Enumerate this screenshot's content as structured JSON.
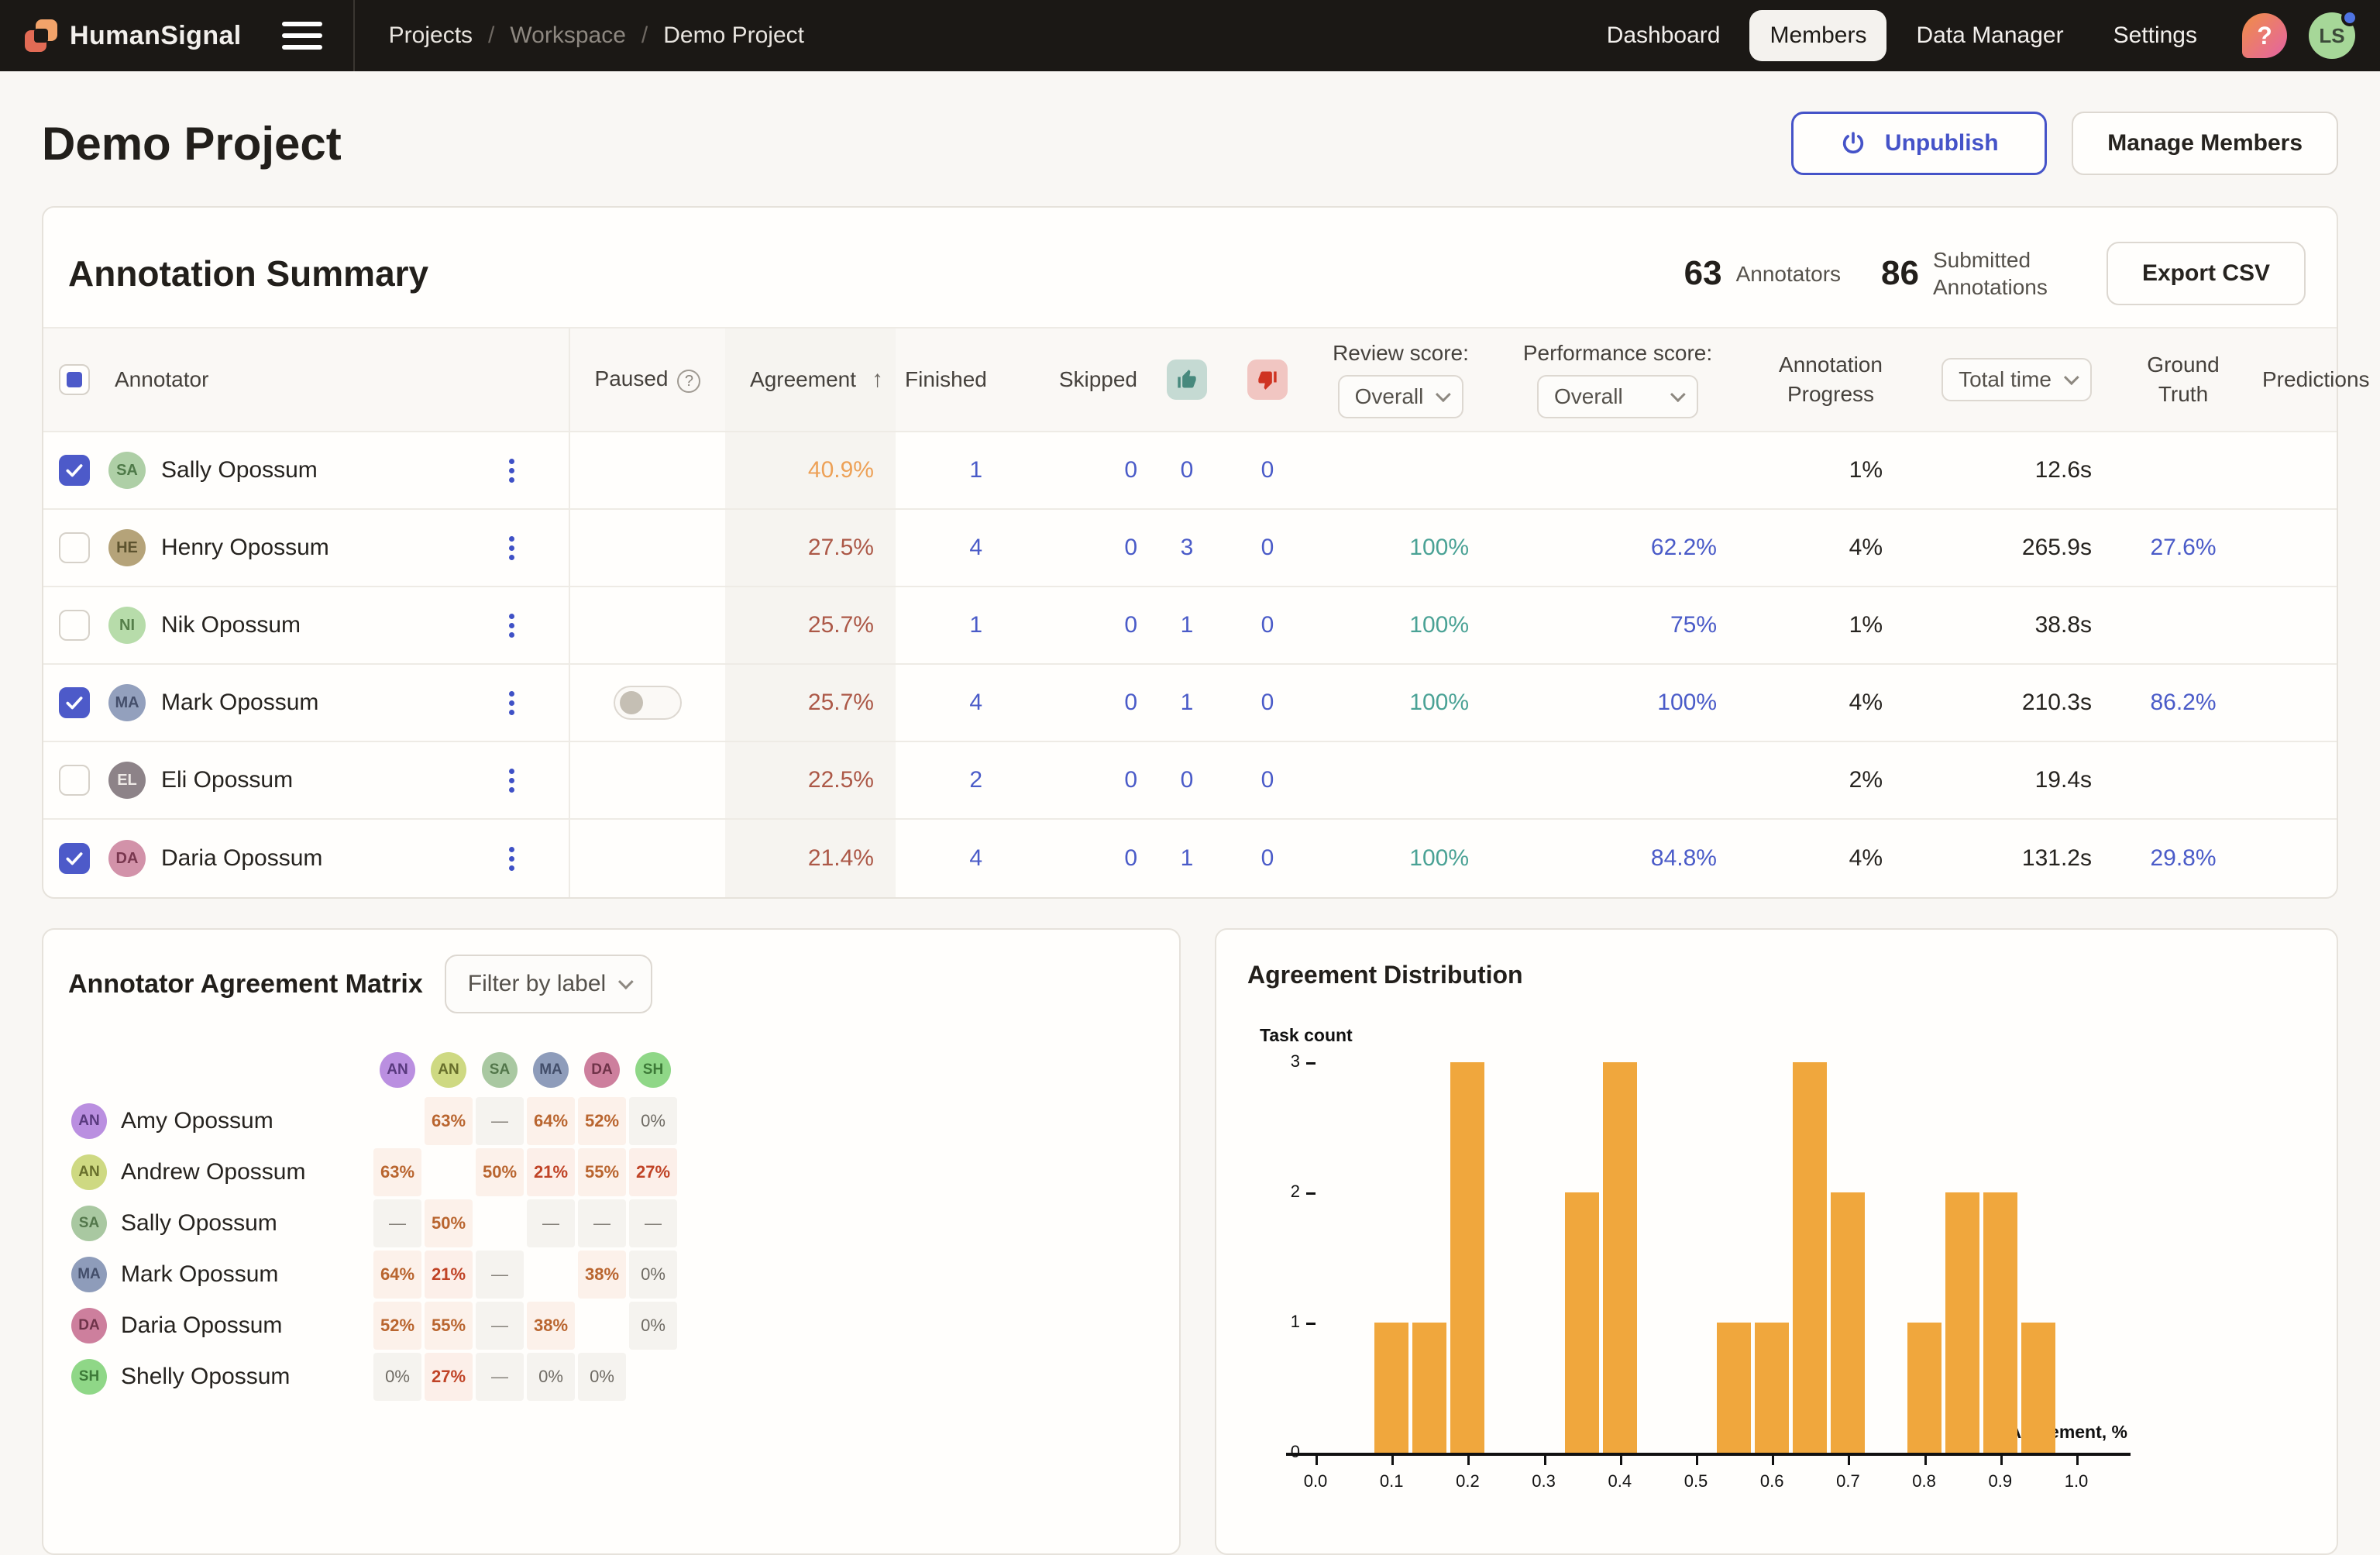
{
  "nav": {
    "brand": "HumanSignal",
    "breadcrumb": [
      "Projects",
      "Workspace",
      "Demo Project"
    ],
    "items": [
      "Dashboard",
      "Members",
      "Data Manager",
      "Settings"
    ],
    "active_item": "Members",
    "help_label": "?",
    "avatar_initials": "LS"
  },
  "page": {
    "title": "Demo Project",
    "unpublish_label": "Unpublish",
    "manage_members_label": "Manage Members"
  },
  "summary": {
    "title": "Annotation Summary",
    "annotators_count": "63",
    "annotators_label": "Annotators",
    "submitted_count": "86",
    "submitted_label": "Submitted Annotations",
    "export_label": "Export CSV"
  },
  "table": {
    "headers": {
      "annotator": "Annotator",
      "paused": "Paused",
      "agreement": "Agreement",
      "sort_arrow": "↑",
      "finished": "Finished",
      "skipped": "Skipped",
      "review_score": "Review score:",
      "review_filter": "Overall",
      "performance_score": "Performance score:",
      "performance_filter": "Overall",
      "annotation_progress": "Annotation Progress",
      "total_time": "Total time",
      "ground_truth": "Ground Truth",
      "predictions": "Predictions"
    },
    "rows": [
      {
        "checked": true,
        "initials": "SA",
        "avatar_bg": "#aecfa6",
        "avatar_fg": "#4f7a49",
        "name": "Sally Opossum",
        "paused": null,
        "agreement": "40.9%",
        "agreement_tone": "v-orange",
        "finished": "1",
        "skipped": "0",
        "thumbs_up": "0",
        "thumbs_down": "0",
        "review": "",
        "performance": "",
        "progress": "1%",
        "total_time": "12.6s",
        "ground_truth": "",
        "predictions": ""
      },
      {
        "checked": false,
        "initials": "HE",
        "avatar_bg": "#b5a379",
        "avatar_fg": "#5d532f",
        "name": "Henry Opossum",
        "paused": null,
        "agreement": "27.5%",
        "agreement_tone": "v-sienna",
        "finished": "4",
        "skipped": "0",
        "thumbs_up": "3",
        "thumbs_down": "0",
        "review": "100%",
        "performance": "62.2%",
        "progress": "4%",
        "total_time": "265.9s",
        "ground_truth": "27.6%",
        "predictions": ""
      },
      {
        "checked": false,
        "initials": "NI",
        "avatar_bg": "#b7dcaa",
        "avatar_fg": "#567f4a",
        "name": "Nik Opossum",
        "paused": null,
        "agreement": "25.7%",
        "agreement_tone": "v-sienna",
        "finished": "1",
        "skipped": "0",
        "thumbs_up": "1",
        "thumbs_down": "0",
        "review": "100%",
        "performance": "75%",
        "progress": "1%",
        "total_time": "38.8s",
        "ground_truth": "",
        "predictions": ""
      },
      {
        "checked": true,
        "initials": "MA",
        "avatar_bg": "#93a0bd",
        "avatar_fg": "#454f6b",
        "name": "Mark Opossum",
        "paused": "off",
        "agreement": "25.7%",
        "agreement_tone": "v-sienna",
        "finished": "4",
        "skipped": "0",
        "thumbs_up": "1",
        "thumbs_down": "0",
        "review": "100%",
        "performance": "100%",
        "progress": "4%",
        "total_time": "210.3s",
        "ground_truth": "86.2%",
        "predictions": ""
      },
      {
        "checked": false,
        "initials": "EL",
        "avatar_bg": "#8d8388",
        "avatar_fg": "#eeeae6",
        "name": "Eli Opossum",
        "paused": null,
        "agreement": "22.5%",
        "agreement_tone": "v-sienna",
        "finished": "2",
        "skipped": "0",
        "thumbs_up": "0",
        "thumbs_down": "0",
        "review": "",
        "performance": "",
        "progress": "2%",
        "total_time": "19.4s",
        "ground_truth": "",
        "predictions": ""
      },
      {
        "checked": true,
        "initials": "DA",
        "avatar_bg": "#d292a9",
        "avatar_fg": "#79374f",
        "name": "Daria Opossum",
        "paused": null,
        "agreement": "21.4%",
        "agreement_tone": "v-sienna",
        "finished": "4",
        "skipped": "0",
        "thumbs_up": "1",
        "thumbs_down": "0",
        "review": "100%",
        "performance": "84.8%",
        "progress": "4%",
        "total_time": "131.2s",
        "ground_truth": "29.8%",
        "predictions": ""
      }
    ]
  },
  "matrix": {
    "title": "Annotator Agreement Matrix",
    "filter_label": "Filter by label",
    "columns": [
      {
        "initials": "AN",
        "bg": "#ba8fe0",
        "fg": "#593a7e"
      },
      {
        "initials": "AN",
        "bg": "#ced982",
        "fg": "#686f2c"
      },
      {
        "initials": "SA",
        "bg": "#a9c8a1",
        "fg": "#53774b"
      },
      {
        "initials": "MA",
        "bg": "#8e9cba",
        "fg": "#434e6a"
      },
      {
        "initials": "DA",
        "bg": "#cd7f9d",
        "fg": "#6f3349"
      },
      {
        "initials": "SH",
        "bg": "#8fd787",
        "fg": "#3d7a38"
      }
    ],
    "rows": [
      {
        "initials": "AN",
        "bg": "#ba8fe0",
        "fg": "#593a7e",
        "name": "Amy Opossum",
        "cells": [
          null,
          {
            "v": "63%",
            "t": "warm"
          },
          {
            "v": "—",
            "t": "na"
          },
          {
            "v": "64%",
            "t": "warm"
          },
          {
            "v": "52%",
            "t": "warm"
          },
          {
            "v": "0%",
            "t": "zero"
          }
        ]
      },
      {
        "initials": "AN",
        "bg": "#ced982",
        "fg": "#686f2c",
        "name": "Andrew Opossum",
        "cells": [
          {
            "v": "63%",
            "t": "warm"
          },
          null,
          {
            "v": "50%",
            "t": "warm"
          },
          {
            "v": "21%",
            "t": "red"
          },
          {
            "v": "55%",
            "t": "warm"
          },
          {
            "v": "27%",
            "t": "red"
          }
        ]
      },
      {
        "initials": "SA",
        "bg": "#a9c8a1",
        "fg": "#53774b",
        "name": "Sally Opossum",
        "cells": [
          {
            "v": "—",
            "t": "na"
          },
          {
            "v": "50%",
            "t": "warm"
          },
          null,
          {
            "v": "—",
            "t": "na"
          },
          {
            "v": "—",
            "t": "na"
          },
          {
            "v": "—",
            "t": "na"
          }
        ]
      },
      {
        "initials": "MA",
        "bg": "#8e9cba",
        "fg": "#434e6a",
        "name": "Mark Opossum",
        "cells": [
          {
            "v": "64%",
            "t": "warm"
          },
          {
            "v": "21%",
            "t": "red"
          },
          {
            "v": "—",
            "t": "na"
          },
          null,
          {
            "v": "38%",
            "t": "warm"
          },
          {
            "v": "0%",
            "t": "zero"
          }
        ]
      },
      {
        "initials": "DA",
        "bg": "#cd7f9d",
        "fg": "#6f3349",
        "name": "Daria Opossum",
        "cells": [
          {
            "v": "52%",
            "t": "warm"
          },
          {
            "v": "55%",
            "t": "warm"
          },
          {
            "v": "—",
            "t": "na"
          },
          {
            "v": "38%",
            "t": "warm"
          },
          null,
          {
            "v": "0%",
            "t": "zero"
          }
        ]
      },
      {
        "initials": "SH",
        "bg": "#8fd787",
        "fg": "#3d7a38",
        "name": "Shelly Opossum",
        "cells": [
          {
            "v": "0%",
            "t": "zero"
          },
          {
            "v": "27%",
            "t": "red"
          },
          {
            "v": "—",
            "t": "na"
          },
          {
            "v": "0%",
            "t": "zero"
          },
          {
            "v": "0%",
            "t": "zero"
          },
          null
        ]
      }
    ]
  },
  "chart_data": {
    "type": "bar",
    "title": "Agreement Distribution",
    "xlabel": "Agreement, %",
    "ylabel": "Task count",
    "xlim": [
      -0.05,
      1.05
    ],
    "ylim": [
      0,
      3
    ],
    "x_ticks": [
      "0.0",
      "0.1",
      "0.2",
      "0.3",
      "0.4",
      "0.5",
      "0.6",
      "0.7",
      "0.8",
      "0.9",
      "1.0"
    ],
    "y_ticks": [
      0,
      1,
      2,
      3
    ],
    "bin_width": 0.05,
    "bar_color": "#f0a73d",
    "grid": false,
    "bars": [
      {
        "x": 0.1,
        "count": 1
      },
      {
        "x": 0.15,
        "count": 1
      },
      {
        "x": 0.2,
        "count": 3
      },
      {
        "x": 0.35,
        "count": 2
      },
      {
        "x": 0.4,
        "count": 3
      },
      {
        "x": 0.55,
        "count": 1
      },
      {
        "x": 0.6,
        "count": 1
      },
      {
        "x": 0.65,
        "count": 3
      },
      {
        "x": 0.7,
        "count": 2
      },
      {
        "x": 0.8,
        "count": 1
      },
      {
        "x": 0.85,
        "count": 2
      },
      {
        "x": 0.9,
        "count": 2
      },
      {
        "x": 0.95,
        "count": 1
      }
    ]
  }
}
